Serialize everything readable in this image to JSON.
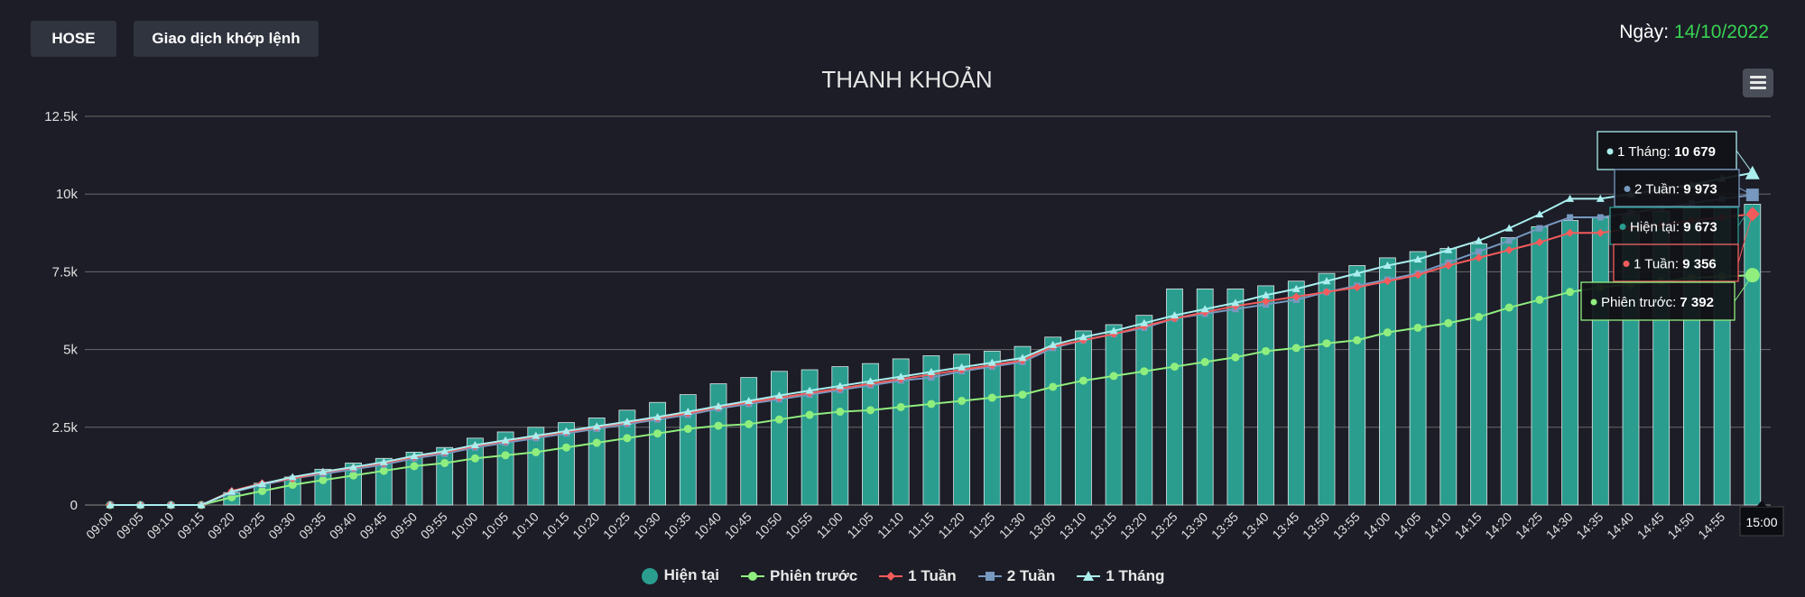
{
  "header": {
    "exchange_label": "HOSE",
    "type_label": "Giao dịch khớp lệnh",
    "date_prefix": "Ngày: ",
    "date_value": "14/10/2022"
  },
  "colors": {
    "background": "#1c1d27",
    "bar": "#2a9d8f",
    "current": "#2a9d8f",
    "previous": "#90ee7e",
    "week1": "#f45b5b",
    "week2": "#7798bf",
    "month1": "#aaeeee",
    "date": "#39d353"
  },
  "chart_data": {
    "type": "bar",
    "title": "THANH KHOẢN",
    "ylim": [
      0,
      12500
    ],
    "yticks": [
      0,
      2500,
      5000,
      7500,
      10000,
      12500
    ],
    "ytick_labels": [
      "0",
      "2.5k",
      "5k",
      "7.5k",
      "10k",
      "12.5k"
    ],
    "categories": [
      "09:00",
      "09:05",
      "09:10",
      "09:15",
      "09:20",
      "09:25",
      "09:30",
      "09:35",
      "09:40",
      "09:45",
      "09:50",
      "09:55",
      "10:00",
      "10:05",
      "10:10",
      "10:15",
      "10:20",
      "10:25",
      "10:30",
      "10:35",
      "10:40",
      "10:45",
      "10:50",
      "10:55",
      "11:00",
      "11:05",
      "11:10",
      "11:15",
      "11:20",
      "11:25",
      "11:30",
      "13:05",
      "13:10",
      "13:15",
      "13:20",
      "13:25",
      "13:30",
      "13:35",
      "13:40",
      "13:45",
      "13:50",
      "13:55",
      "14:00",
      "14:05",
      "14:10",
      "14:15",
      "14:20",
      "14:25",
      "14:30",
      "14:35",
      "14:40",
      "14:45",
      "14:50",
      "14:55",
      "15:00"
    ],
    "tick_labels": [
      "09:00",
      "09:05",
      "09:10",
      "09:15",
      "09:20",
      "09:25",
      "09:30",
      "09:35",
      "09:40",
      "09:45",
      "09:50",
      "09:55",
      "10:00",
      "10:05",
      "10:10",
      "10:15",
      "10:20",
      "10:25",
      "10:30",
      "10:35",
      "10:40",
      "10:45",
      "10:50",
      "10:55",
      "11:00",
      "11:05",
      "11:10",
      "11:15",
      "11:20",
      "11:25",
      "11:30",
      "13:05",
      "13:10",
      "13:15",
      "13:20",
      "13:25",
      "13:30",
      "13:35",
      "13:40",
      "13:45",
      "13:50",
      "13:55",
      "14:00",
      "14:05",
      "14:10",
      "14:15",
      "14:20",
      "14:25",
      "14:30",
      "14:35",
      "14:40",
      "14:45",
      "14:50",
      "14:55",
      "15:"
    ],
    "grid": true,
    "legend_position": "bottom",
    "series": [
      {
        "name": "Hiện tại",
        "type": "bar",
        "values": [
          0,
          0,
          0,
          0,
          400,
          700,
          900,
          1150,
          1350,
          1500,
          1700,
          1850,
          2150,
          2350,
          2500,
          2650,
          2800,
          3050,
          3300,
          3550,
          3900,
          4100,
          4300,
          4350,
          4450,
          4550,
          4700,
          4800,
          4850,
          4950,
          5100,
          5400,
          5600,
          5800,
          6100,
          6950,
          6950,
          6950,
          7050,
          7200,
          7450,
          7700,
          7950,
          8150,
          8250,
          8400,
          8600,
          8950,
          9150,
          9250,
          9350,
          9450,
          9550,
          9600,
          9673
        ]
      },
      {
        "name": "Phiên trước",
        "type": "line",
        "values": [
          0,
          0,
          0,
          0,
          250,
          450,
          650,
          800,
          950,
          1100,
          1250,
          1350,
          1500,
          1600,
          1700,
          1850,
          2000,
          2150,
          2300,
          2450,
          2550,
          2600,
          2750,
          2900,
          3000,
          3050,
          3150,
          3250,
          3350,
          3450,
          3550,
          3800,
          4000,
          4150,
          4300,
          4450,
          4600,
          4750,
          4950,
          5050,
          5200,
          5300,
          5550,
          5700,
          5850,
          6050,
          6350,
          6600,
          6850,
          7000,
          7100,
          7200,
          7300,
          7350,
          7392
        ]
      },
      {
        "name": "1 Tuần",
        "type": "line",
        "values": [
          0,
          0,
          0,
          0,
          450,
          700,
          850,
          1050,
          1200,
          1350,
          1550,
          1700,
          1900,
          2050,
          2200,
          2350,
          2500,
          2650,
          2800,
          2950,
          3150,
          3300,
          3450,
          3600,
          3750,
          3900,
          4050,
          4200,
          4350,
          4500,
          4650,
          5100,
          5300,
          5500,
          5750,
          6000,
          6200,
          6400,
          6550,
          6700,
          6850,
          7000,
          7200,
          7400,
          7700,
          7950,
          8200,
          8450,
          8750,
          8750,
          8900,
          9000,
          9150,
          9250,
          9356
        ]
      },
      {
        "name": "2 Tuần",
        "type": "line",
        "values": [
          0,
          0,
          0,
          0,
          400,
          650,
          850,
          1000,
          1150,
          1300,
          1500,
          1650,
          1850,
          2000,
          2150,
          2300,
          2450,
          2600,
          2750,
          2900,
          3100,
          3250,
          3400,
          3550,
          3700,
          3850,
          4000,
          4100,
          4300,
          4450,
          4600,
          5050,
          5300,
          5500,
          5700,
          6000,
          6150,
          6300,
          6450,
          6600,
          6850,
          7050,
          7250,
          7450,
          7800,
          8150,
          8500,
          8900,
          9250,
          9250,
          9400,
          9550,
          9700,
          9850,
          9973
        ]
      },
      {
        "name": "1 Tháng",
        "type": "line",
        "values": [
          0,
          0,
          0,
          0,
          430,
          680,
          900,
          1070,
          1220,
          1380,
          1580,
          1730,
          1930,
          2080,
          2230,
          2380,
          2530,
          2680,
          2830,
          3000,
          3180,
          3350,
          3520,
          3680,
          3830,
          3980,
          4130,
          4280,
          4430,
          4580,
          4730,
          5150,
          5400,
          5600,
          5850,
          6100,
          6300,
          6500,
          6750,
          6950,
          7200,
          7450,
          7700,
          7900,
          8200,
          8500,
          8900,
          9350,
          9850,
          9850,
          10000,
          10150,
          10300,
          10500,
          10679
        ]
      }
    ],
    "tooltip": {
      "x_label": "15:00",
      "entries": [
        {
          "series": "1 Tháng",
          "label": "1 Tháng: ",
          "value": "10 679"
        },
        {
          "series": "2 Tuần",
          "label": "2 Tuần: ",
          "value": "9 973"
        },
        {
          "series": "Hiện tại",
          "label": "Hiện tại: ",
          "value": "9 673"
        },
        {
          "series": "1 Tuần",
          "label": "1 Tuần: ",
          "value": "9 356"
        },
        {
          "series": "Phiên trước",
          "label": "Phiên trước: ",
          "value": "7 392"
        }
      ]
    }
  }
}
